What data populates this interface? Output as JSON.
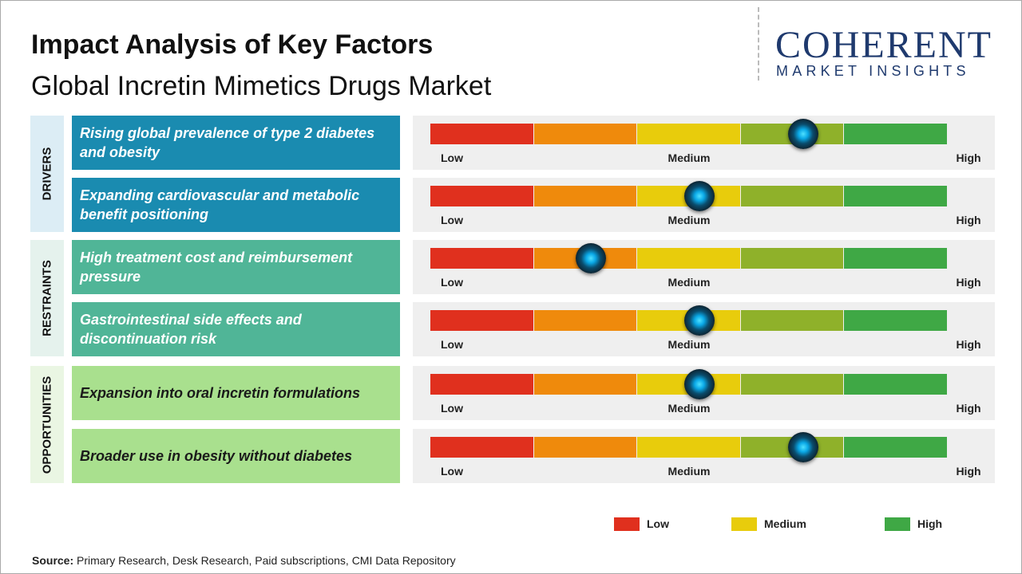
{
  "header": {
    "title": "Impact Analysis of Key Factors",
    "subtitle": "Global Incretin Mimetics Drugs Market"
  },
  "logo": {
    "name": "COHERENT",
    "tagline": "MARKET INSIGHTS"
  },
  "scale": {
    "labels": [
      "Low",
      "Medium",
      "High"
    ],
    "colors": [
      "#e0301e",
      "#ef8a0c",
      "#e8cc0c",
      "#8fb12a",
      "#3fa845"
    ]
  },
  "groups": [
    {
      "name": "DRIVERS",
      "color": "#1a8bb0",
      "side": "#dcedf5",
      "text_color": "#ffffff",
      "factors": [
        {
          "label": "Rising global prevalence of type 2 diabetes and obesity",
          "impact": 3.6
        },
        {
          "label": "Expanding cardiovascular and metabolic benefit positioning",
          "impact": 2.6
        }
      ]
    },
    {
      "name": "RESTRAINTS",
      "color": "#50b597",
      "side": "#e5f2ed",
      "text_color": "#ffffff",
      "factors": [
        {
          "label": "High treatment cost and reimbursement pressure",
          "impact": 1.55
        },
        {
          "label": "Gastrointestinal side effects and discontinuation risk",
          "impact": 2.6
        }
      ]
    },
    {
      "name": "OPPORTUNITIES",
      "color": "#a9e08e",
      "side": "#eaf6e3",
      "text_color": "#1a1a1a",
      "factors": [
        {
          "label": "Expansion into oral incretin formulations",
          "impact": 2.6
        },
        {
          "label": "Broader use in obesity without diabetes",
          "impact": 3.6
        }
      ]
    }
  ],
  "legend": [
    {
      "label": "Low",
      "color": "#e0301e"
    },
    {
      "label": "Medium",
      "color": "#e8cc0c"
    },
    {
      "label": "High",
      "color": "#3fa845"
    }
  ],
  "source": {
    "label": "Source:",
    "text": "Primary Research, Desk Research, Paid subscriptions, CMI Data Repository"
  }
}
